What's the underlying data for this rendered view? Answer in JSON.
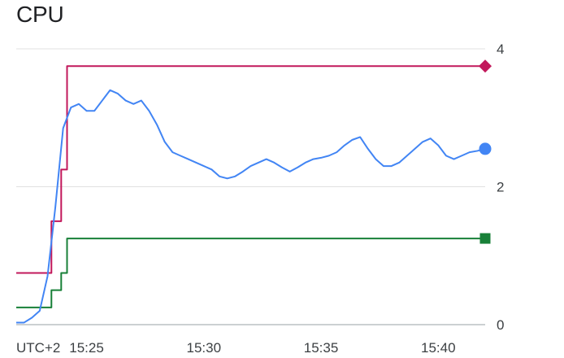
{
  "chart_data": {
    "type": "line",
    "title": "CPU",
    "timezone_label": "UTC+2",
    "xlabel": "",
    "ylabel": "",
    "ylim": [
      0,
      4
    ],
    "xlim": [
      "15:22:00",
      "15:42:00"
    ],
    "x_ticks": [
      "15:25",
      "15:30",
      "15:35",
      "15:40"
    ],
    "y_ticks": [
      0,
      2,
      4
    ],
    "grid": true,
    "legend": "none",
    "series": [
      {
        "color": "#c2185b",
        "marker": "diamond",
        "step": true,
        "x": [
          "15:22:00",
          "15:23:25",
          "15:23:30",
          "15:23:45",
          "15:23:55",
          "15:24:05",
          "15:24:10",
          "15:42:00"
        ],
        "y": [
          0.75,
          0.75,
          1.5,
          1.5,
          2.25,
          2.25,
          3.75,
          3.75
        ]
      },
      {
        "color": "#188038",
        "marker": "square",
        "step": true,
        "x": [
          "15:22:00",
          "15:23:25",
          "15:23:30",
          "15:23:45",
          "15:23:55",
          "15:24:05",
          "15:24:10",
          "15:42:00"
        ],
        "y": [
          0.25,
          0.25,
          0.5,
          0.5,
          0.75,
          0.75,
          1.25,
          1.25
        ]
      },
      {
        "color": "#4285f4",
        "marker": "circle",
        "step": false,
        "x": [
          "15:22:00",
          "15:22:20",
          "15:22:40",
          "15:23:00",
          "15:23:20",
          "15:23:40",
          "15:24:00",
          "15:24:20",
          "15:24:40",
          "15:25:00",
          "15:25:20",
          "15:25:40",
          "15:26:00",
          "15:26:20",
          "15:26:40",
          "15:27:00",
          "15:27:20",
          "15:27:40",
          "15:28:00",
          "15:28:20",
          "15:28:40",
          "15:29:00",
          "15:29:20",
          "15:29:40",
          "15:30:00",
          "15:30:20",
          "15:30:40",
          "15:31:00",
          "15:31:20",
          "15:31:40",
          "15:32:00",
          "15:32:20",
          "15:32:40",
          "15:33:00",
          "15:33:20",
          "15:33:40",
          "15:34:00",
          "15:34:20",
          "15:34:40",
          "15:35:00",
          "15:35:20",
          "15:35:40",
          "15:36:00",
          "15:36:20",
          "15:36:40",
          "15:37:00",
          "15:37:20",
          "15:37:40",
          "15:38:00",
          "15:38:20",
          "15:38:40",
          "15:39:00",
          "15:39:20",
          "15:39:40",
          "15:40:00",
          "15:40:20",
          "15:40:40",
          "15:41:00",
          "15:41:20",
          "15:41:40",
          "15:42:00"
        ],
        "y": [
          0.03,
          0.03,
          0.1,
          0.2,
          0.7,
          1.7,
          2.85,
          3.15,
          3.2,
          3.1,
          3.1,
          3.25,
          3.4,
          3.35,
          3.25,
          3.2,
          3.25,
          3.1,
          2.9,
          2.65,
          2.5,
          2.45,
          2.4,
          2.35,
          2.3,
          2.25,
          2.15,
          2.12,
          2.15,
          2.22,
          2.3,
          2.35,
          2.4,
          2.35,
          2.28,
          2.22,
          2.28,
          2.35,
          2.4,
          2.42,
          2.45,
          2.5,
          2.6,
          2.68,
          2.72,
          2.55,
          2.4,
          2.3,
          2.3,
          2.35,
          2.45,
          2.55,
          2.65,
          2.7,
          2.6,
          2.45,
          2.4,
          2.45,
          2.5,
          2.52,
          2.55
        ]
      }
    ]
  }
}
